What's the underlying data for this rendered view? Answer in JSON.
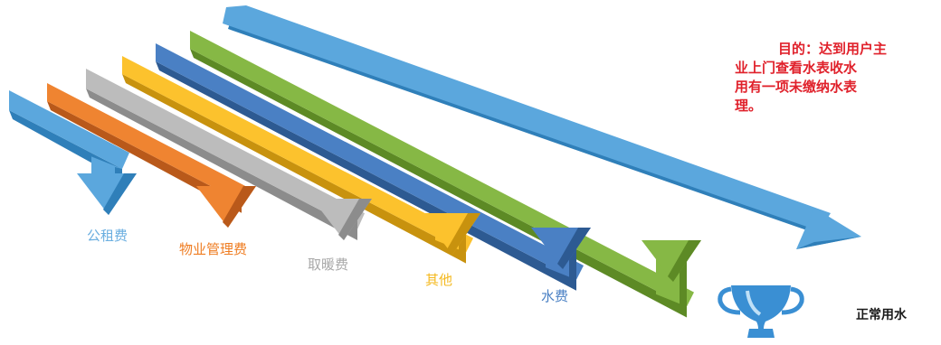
{
  "arrows": [
    {
      "label": "公租费",
      "color": "#5ba7dd",
      "dark": "#2f7fb9",
      "label_color": "#6aaee0"
    },
    {
      "label": "物业管理费",
      "color": "#ef8431",
      "dark": "#b9591a",
      "label_color": "#ef7d22"
    },
    {
      "label": "取暖费",
      "color": "#bcbcbc",
      "dark": "#8c8c8c",
      "label_color": "#a8a8a8"
    },
    {
      "label": "其他",
      "color": "#fcc22d",
      "dark": "#c8920e",
      "label_color": "#f4b81c"
    },
    {
      "label": "水费",
      "color": "#4a80c4",
      "dark": "#2d5a92",
      "label_color": "#4a80c4"
    },
    {
      "label": "",
      "color": "#86b845",
      "dark": "#5d8a25",
      "label_color": "#86b845"
    }
  ],
  "main_arrow": {
    "color": "#5ba7dd",
    "dark": "#2f7fb9"
  },
  "goal": {
    "lines": [
      "目的：达到用户主",
      "业上门查看水表收水",
      "用有一项未缴纳水表",
      "理。"
    ]
  },
  "result": {
    "label": "正常用水",
    "icon": "trophy-icon",
    "icon_color": "#3a8fd3"
  }
}
